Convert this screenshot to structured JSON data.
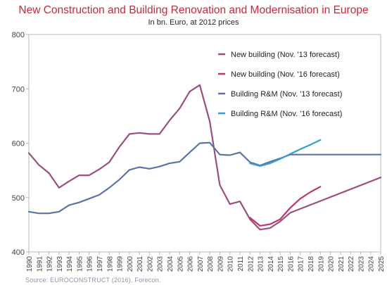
{
  "chart_data": {
    "type": "line",
    "title": "New Construction and Building Renovation and Modernisation in Europe",
    "subtitle": "In bn. Euro, at 2012 prices",
    "source": "Source: EUROCONSTRUCT (2016). Forecon.",
    "xlabel": "",
    "ylabel": "",
    "ylim": [
      400,
      800
    ],
    "yticks": [
      400,
      500,
      600,
      700,
      800
    ],
    "xlim": [
      1990,
      2025
    ],
    "xticks": [
      "1990",
      "1991",
      "1992",
      "1993",
      "1994",
      "1995",
      "1996",
      "1997",
      "1998",
      "1999",
      "2000",
      "2001",
      "2002",
      "2003",
      "2004",
      "2005",
      "2006",
      "2007",
      "2008",
      "2009",
      "2010",
      "2011",
      "2012",
      "2013",
      "2014",
      "2015",
      "2016",
      "2017",
      "2018",
      "2019",
      "2020",
      "2021",
      "2022",
      "2023",
      "2024",
      "2025"
    ],
    "grid": false,
    "legend": "top-right",
    "series": [
      {
        "name": "New building (Nov. '13 forecast)",
        "color": "#9b4f7f",
        "points": [
          [
            1990,
            582
          ],
          [
            1991,
            560
          ],
          [
            1992,
            545
          ],
          [
            1993,
            518
          ],
          [
            1994,
            530
          ],
          [
            1995,
            541
          ],
          [
            1996,
            541
          ],
          [
            1997,
            552
          ],
          [
            1998,
            565
          ],
          [
            1999,
            593
          ],
          [
            2000,
            617
          ],
          [
            2001,
            619
          ],
          [
            2002,
            617
          ],
          [
            2003,
            617
          ],
          [
            2004,
            642
          ],
          [
            2005,
            664
          ],
          [
            2006,
            695
          ],
          [
            2007,
            707
          ],
          [
            2008,
            640
          ],
          [
            2009,
            523
          ],
          [
            2010,
            488
          ],
          [
            2011,
            493
          ],
          [
            2012,
            460
          ],
          [
            2013,
            441
          ],
          [
            2014,
            444
          ],
          [
            2015,
            456
          ],
          [
            2016,
            472
          ],
          [
            2025,
            537
          ]
        ]
      },
      {
        "name": "New building (Nov. '16 forecast)",
        "color": "#c0336e",
        "points": [
          [
            2012,
            463
          ],
          [
            2013,
            448
          ],
          [
            2014,
            451
          ],
          [
            2015,
            460
          ],
          [
            2016,
            481
          ],
          [
            2017,
            498
          ],
          [
            2018,
            510
          ],
          [
            2019,
            520
          ]
        ]
      },
      {
        "name": "Building R&M (Nov. '13 forecast)",
        "color": "#5b73a8",
        "points": [
          [
            1990,
            474
          ],
          [
            1991,
            471
          ],
          [
            1992,
            471
          ],
          [
            1993,
            474
          ],
          [
            1994,
            486
          ],
          [
            1995,
            491
          ],
          [
            1996,
            498
          ],
          [
            1997,
            505
          ],
          [
            1998,
            518
          ],
          [
            1999,
            533
          ],
          [
            2000,
            551
          ],
          [
            2001,
            556
          ],
          [
            2002,
            553
          ],
          [
            2003,
            557
          ],
          [
            2004,
            563
          ],
          [
            2005,
            566
          ],
          [
            2006,
            583
          ],
          [
            2007,
            600
          ],
          [
            2008,
            601
          ],
          [
            2009,
            579
          ],
          [
            2010,
            578
          ],
          [
            2011,
            583
          ],
          [
            2012,
            565
          ],
          [
            2013,
            559
          ],
          [
            2014,
            566
          ],
          [
            2015,
            572
          ],
          [
            2016,
            579
          ],
          [
            2025,
            579
          ]
        ]
      },
      {
        "name": "Building R&M (Nov. '16 forecast)",
        "color": "#3a9ccb",
        "points": [
          [
            2012,
            563
          ],
          [
            2013,
            558
          ],
          [
            2014,
            563
          ],
          [
            2015,
            571
          ],
          [
            2016,
            580
          ],
          [
            2017,
            589
          ],
          [
            2018,
            597
          ],
          [
            2019,
            606
          ]
        ]
      }
    ]
  }
}
